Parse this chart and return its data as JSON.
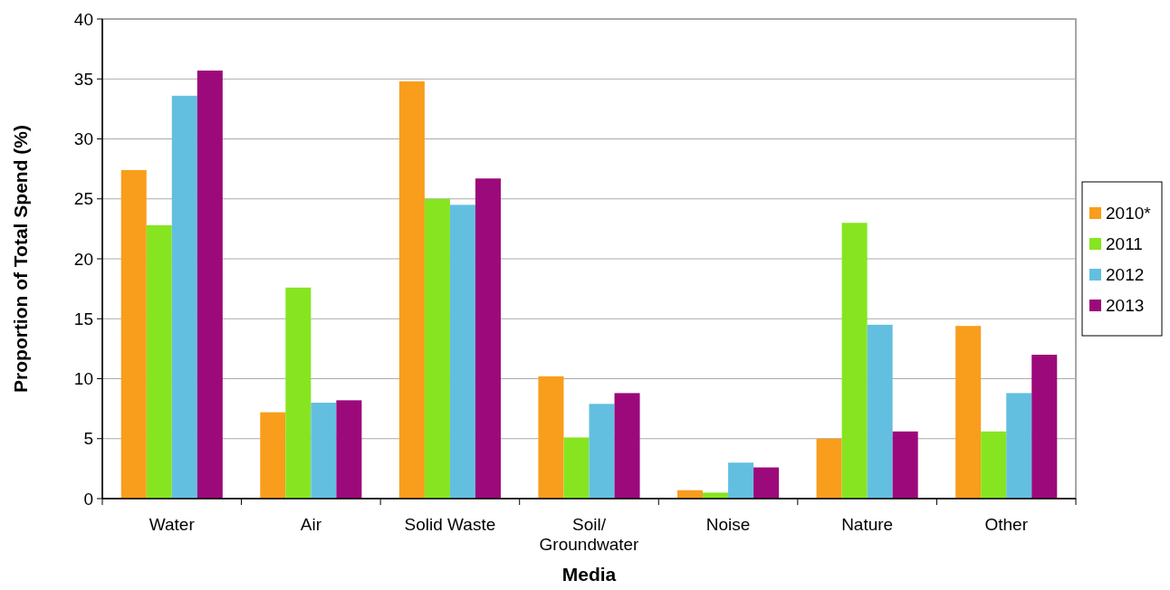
{
  "chart_data": {
    "type": "bar",
    "xlabel": "Media",
    "ylabel": "Proportion of Total Spend (%)",
    "categories": [
      "Water",
      "Air",
      "Solid Waste",
      "Soil/\nGroundwater",
      "Noise",
      "Nature",
      "Other"
    ],
    "series": [
      {
        "name": "2010*",
        "color": "#f99d1c",
        "values": [
          27.4,
          7.2,
          34.8,
          10.2,
          0.7,
          5.0,
          14.4
        ]
      },
      {
        "name": "2011",
        "color": "#86e520",
        "values": [
          22.8,
          17.6,
          25.0,
          5.1,
          0.5,
          23.0,
          5.6
        ]
      },
      {
        "name": "2012",
        "color": "#63bfe0",
        "values": [
          33.6,
          8.0,
          24.5,
          7.9,
          3.0,
          14.5,
          8.8
        ]
      },
      {
        "name": "2013",
        "color": "#9c097b",
        "values": [
          35.7,
          8.2,
          26.7,
          8.8,
          2.6,
          5.6,
          12.0
        ]
      }
    ],
    "ylim": [
      0,
      40
    ],
    "yticks": [
      0,
      5,
      10,
      15,
      20,
      25,
      30,
      35,
      40
    ],
    "grid": "y",
    "legend": "right"
  }
}
